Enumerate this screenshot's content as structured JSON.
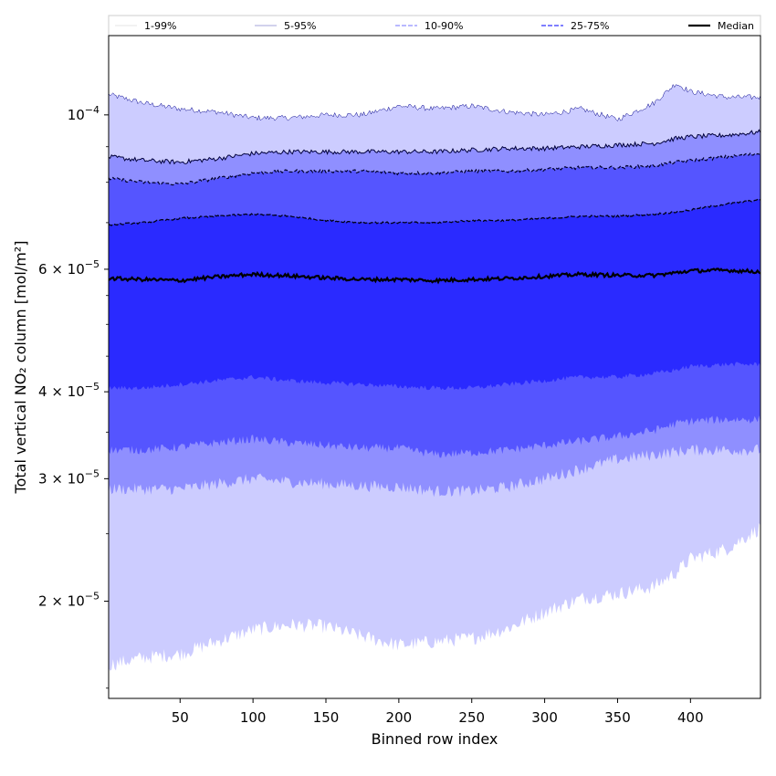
{
  "chart_data": {
    "type": "area",
    "title": "",
    "xlabel": "Binned row index",
    "ylabel": "Total vertical NO₂ column [mol/m²]",
    "y_scale": "log",
    "xlim": [
      1,
      448
    ],
    "ylim": [
      1.45e-05,
      0.00013
    ],
    "x_ticks": [
      50,
      100,
      150,
      200,
      250,
      300,
      350,
      400
    ],
    "y_ticks": [
      {
        "value": 0.0001,
        "mantissa": "",
        "exponent": "−4",
        "label": "10^-4"
      },
      {
        "value": 6e-05,
        "mantissa": "6",
        "exponent": "−5",
        "label": "6 × 10^-5"
      },
      {
        "value": 4e-05,
        "mantissa": "4",
        "exponent": "−5",
        "label": "4 × 10^-5"
      },
      {
        "value": 3e-05,
        "mantissa": "3",
        "exponent": "−5",
        "label": "3 × 10^-5"
      },
      {
        "value": 2e-05,
        "mantissa": "2",
        "exponent": "−5",
        "label": "2 × 10^-5"
      }
    ],
    "legend": {
      "placement": "top, above plot",
      "entries": [
        "1-99%",
        "5-95%",
        "10-90%",
        "25-75%",
        "Median"
      ]
    },
    "grid": false,
    "colors": {
      "band_1_99": "#ccccff",
      "band_5_95": "#8f8fff",
      "band_10_90": "#5555ff",
      "band_25_75": "#2a2aff",
      "median": "#000000"
    },
    "x": [
      1,
      25,
      50,
      75,
      100,
      125,
      150,
      175,
      200,
      225,
      250,
      275,
      300,
      325,
      350,
      375,
      390,
      400,
      425,
      448
    ],
    "series": [
      {
        "name": "1-99%",
        "lower": [
          1.62e-05,
          1.66e-05,
          1.68e-05,
          1.75e-05,
          1.82e-05,
          1.85e-05,
          1.84e-05,
          1.78e-05,
          1.73e-05,
          1.75e-05,
          1.77e-05,
          1.83e-05,
          1.93e-05,
          2.02e-05,
          2.05e-05,
          2.1e-05,
          2.2e-05,
          2.3e-05,
          2.38e-05,
          2.55e-05
        ],
        "upper": [
          0.000107,
          0.000104,
          0.000102,
          0.000101,
          9.9e-05,
          9.9e-05,
          0.0001,
          0.0001,
          0.000103,
          0.000102,
          0.000103,
          0.000101,
          0.0001,
          0.000102,
          9.85e-05,
          0.000104,
          0.000111,
          0.000108,
          0.000106,
          0.000106
        ]
      },
      {
        "name": "5-95%",
        "lower": [
          2.9e-05,
          2.9e-05,
          2.9e-05,
          2.95e-05,
          3e-05,
          2.97e-05,
          2.95e-05,
          2.93e-05,
          2.92e-05,
          2.88e-05,
          2.88e-05,
          2.92e-05,
          3e-05,
          3.1e-05,
          3.2e-05,
          3.25e-05,
          3.28e-05,
          3.3e-05,
          3.3e-05,
          3.3e-05
        ],
        "upper": [
          8.7e-05,
          8.6e-05,
          8.55e-05,
          8.65e-05,
          8.8e-05,
          8.85e-05,
          8.85e-05,
          8.85e-05,
          8.85e-05,
          8.85e-05,
          8.9e-05,
          8.95e-05,
          8.95e-05,
          9e-05,
          9.05e-05,
          9.1e-05,
          9.25e-05,
          9.3e-05,
          9.35e-05,
          9.45e-05
        ]
      },
      {
        "name": "10-90%",
        "lower": [
          3.3e-05,
          3.3e-05,
          3.33e-05,
          3.38e-05,
          3.42e-05,
          3.38e-05,
          3.35e-05,
          3.32e-05,
          3.32e-05,
          3.25e-05,
          3.27e-05,
          3.3e-05,
          3.35e-05,
          3.4e-05,
          3.45e-05,
          3.52e-05,
          3.6e-05,
          3.63e-05,
          3.65e-05,
          3.65e-05
        ],
        "upper": [
          8.1e-05,
          8e-05,
          7.95e-05,
          8.1e-05,
          8.25e-05,
          8.3e-05,
          8.3e-05,
          8.3e-05,
          8.25e-05,
          8.25e-05,
          8.3e-05,
          8.3e-05,
          8.35e-05,
          8.4e-05,
          8.4e-05,
          8.45e-05,
          8.55e-05,
          8.6e-05,
          8.7e-05,
          8.8e-05
        ]
      },
      {
        "name": "25-75%",
        "lower": [
          4.05e-05,
          4.05e-05,
          4.1e-05,
          4.15e-05,
          4.2e-05,
          4.15e-05,
          4.12e-05,
          4.1e-05,
          4.07e-05,
          4.05e-05,
          4.05e-05,
          4.1e-05,
          4.15e-05,
          4.2e-05,
          4.2e-05,
          4.25e-05,
          4.3e-05,
          4.35e-05,
          4.38e-05,
          4.38e-05
        ],
        "upper": [
          6.95e-05,
          7e-05,
          7.1e-05,
          7.15e-05,
          7.2e-05,
          7.15e-05,
          7.05e-05,
          7e-05,
          7e-05,
          7e-05,
          7.05e-05,
          7.05e-05,
          7.1e-05,
          7.15e-05,
          7.15e-05,
          7.2e-05,
          7.25e-05,
          7.3e-05,
          7.45e-05,
          7.55e-05
        ]
      },
      {
        "name": "Median",
        "values": [
          5.82e-05,
          5.8e-05,
          5.78e-05,
          5.85e-05,
          5.9e-05,
          5.87e-05,
          5.83e-05,
          5.8e-05,
          5.8e-05,
          5.78e-05,
          5.8e-05,
          5.82e-05,
          5.86e-05,
          5.9e-05,
          5.88e-05,
          5.88e-05,
          5.93e-05,
          5.97e-05,
          5.98e-05,
          5.95e-05
        ]
      }
    ]
  }
}
